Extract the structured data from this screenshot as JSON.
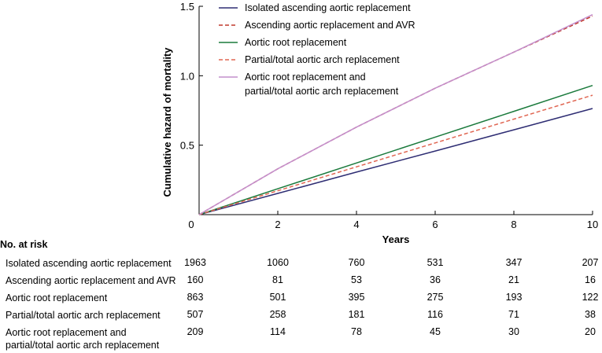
{
  "chart_data": {
    "type": "line",
    "xlabel": "Years",
    "ylabel": "Cumulative hazard of mortality",
    "xlim": [
      0,
      10
    ],
    "ylim": [
      0,
      1.5
    ],
    "xticks": [
      0,
      2,
      4,
      6,
      8,
      10
    ],
    "yticks": [
      0.5,
      1.0,
      1.5
    ],
    "x_tick_labels": [
      "0",
      "2",
      "4",
      "6",
      "8",
      "10"
    ],
    "y_tick_labels": [
      "0.5",
      "1.0",
      "1.5"
    ],
    "series": [
      {
        "name": "Isolated ascending aortic replacement",
        "color": "#2e2d73",
        "dash": "solid",
        "x": [
          0,
          2,
          4,
          6,
          8,
          10
        ],
        "y": [
          0,
          0.153,
          0.306,
          0.458,
          0.611,
          0.764
        ]
      },
      {
        "name": "Ascending aortic replacement and AVR",
        "color": "#c0392b",
        "dash": "dashed",
        "x": [
          0,
          2,
          4,
          6,
          8,
          10
        ],
        "y": [
          0,
          0.33,
          0.63,
          0.91,
          1.17,
          1.43
        ]
      },
      {
        "name": "Aortic root replacement",
        "color": "#1a7a3c",
        "dash": "solid",
        "x": [
          0,
          2,
          4,
          6,
          8,
          10
        ],
        "y": [
          0,
          0.186,
          0.372,
          0.558,
          0.744,
          0.93
        ]
      },
      {
        "name": "Partial/total aortic arch replacement",
        "color": "#e06652",
        "dash": "dashed",
        "x": [
          0,
          2,
          4,
          6,
          8,
          10
        ],
        "y": [
          0,
          0.172,
          0.344,
          0.516,
          0.688,
          0.86
        ]
      },
      {
        "name": "Aortic root replacement and\npartial/total aortic arch replacement",
        "color": "#c48fcc",
        "dash": "solid",
        "x": [
          0,
          2,
          4,
          6,
          8,
          10
        ],
        "y": [
          0,
          0.33,
          0.63,
          0.91,
          1.17,
          1.44
        ]
      }
    ]
  },
  "risk_table": {
    "title": "No. at risk",
    "rows": [
      {
        "label": "Isolated ascending aortic replacement",
        "values": [
          "1963",
          "1060",
          "760",
          "531",
          "347",
          "207"
        ]
      },
      {
        "label": "Ascending aortic replacement and AVR",
        "values": [
          "160",
          "81",
          "53",
          "36",
          "21",
          "16"
        ]
      },
      {
        "label": "Aortic root replacement",
        "values": [
          "863",
          "501",
          "395",
          "275",
          "193",
          "122"
        ]
      },
      {
        "label": "Partial/total aortic arch replacement",
        "values": [
          "507",
          "258",
          "181",
          "116",
          "71",
          "38"
        ]
      },
      {
        "label": "Aortic root replacement and\npartial/total aortic arch replacement",
        "values": [
          "209",
          "114",
          "78",
          "45",
          "30",
          "20"
        ]
      }
    ]
  }
}
